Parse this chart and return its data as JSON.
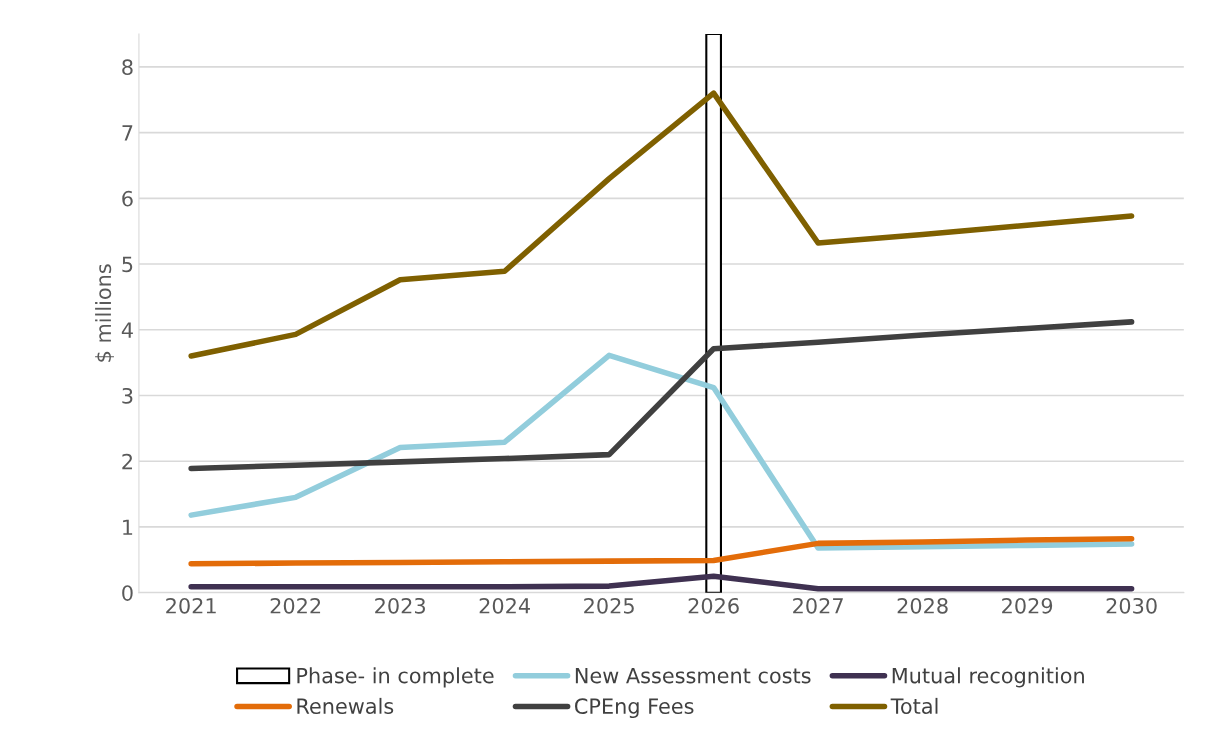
{
  "chart_data": {
    "type": "line",
    "ylabel": "$ millions",
    "categories": [
      "2021",
      "2022",
      "2023",
      "2024",
      "2025",
      "2026",
      "2027",
      "2028",
      "2029",
      "2030"
    ],
    "series": [
      {
        "name": "Phase- in complete",
        "type": "bar",
        "color": "#ffffff",
        "values": [
          null,
          null,
          null,
          null,
          null,
          8.5,
          null,
          null,
          null,
          null
        ]
      },
      {
        "name": "New Assessment costs",
        "color": "#92cddc",
        "values": [
          1.18,
          1.45,
          2.21,
          2.29,
          3.61,
          3.12,
          0.68,
          0.7,
          0.72,
          0.74
        ]
      },
      {
        "name": "Mutual recognition",
        "color": "#3f3151",
        "values": [
          0.09,
          0.09,
          0.09,
          0.09,
          0.1,
          0.25,
          0.06,
          0.06,
          0.06,
          0.06
        ]
      },
      {
        "name": "Renewals",
        "color": "#e36c09",
        "values": [
          0.44,
          0.45,
          0.46,
          0.47,
          0.48,
          0.49,
          0.75,
          0.77,
          0.8,
          0.82
        ]
      },
      {
        "name": "CPEng Fees",
        "color": "#404040",
        "values": [
          1.89,
          1.94,
          1.99,
          2.04,
          2.1,
          3.71,
          3.81,
          3.92,
          4.02,
          4.12
        ]
      },
      {
        "name": "Total",
        "color": "#7f6000",
        "values": [
          3.6,
          3.93,
          4.76,
          4.89,
          6.3,
          7.6,
          5.32,
          5.45,
          5.59,
          5.73
        ]
      }
    ],
    "ylim": [
      0,
      8.5
    ],
    "yticks": [
      0,
      1,
      2,
      3,
      4,
      5,
      6,
      7,
      8
    ],
    "grid": "y",
    "legend": "bottom",
    "marker": "none",
    "line_style": "solid"
  }
}
